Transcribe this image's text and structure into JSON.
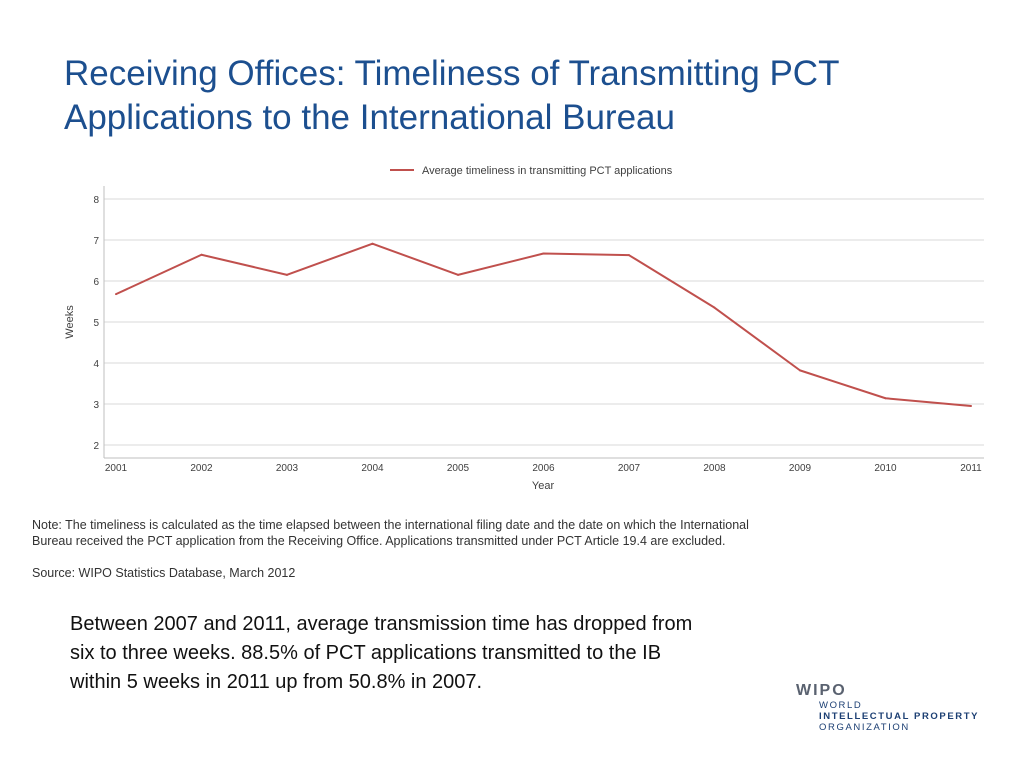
{
  "title": {
    "line1": "Receiving Offices:  Timeliness of Transmitting PCT",
    "line2": "Applications to the International Bureau"
  },
  "note": {
    "line1": "Note: The timeliness is calculated as the time elapsed between the international filing date and the date on which the International",
    "line2": "Bureau received the PCT application from the Receiving Office. Applications transmitted under PCT Article 19.4 are excluded."
  },
  "source": "Source: WIPO Statistics Database, March 2012",
  "summary": {
    "line1": "Between 2007 and 2011, average transmission time has dropped from",
    "line2": "six to three weeks. 88.5% of PCT applications transmitted to the IB",
    "line3": "within 5 weeks in 2011 up from 50.8% in 2007."
  },
  "logo": {
    "word": "WIPO",
    "line1": "WORLD",
    "line2": "INTELLECTUAL PROPERTY",
    "line3": "ORGANIZATION"
  },
  "colors": {
    "title": "#1c4f8f",
    "series_line": "#c0504d",
    "grid": "#d9d9d9",
    "axis_text": "#404040"
  },
  "chart_data": {
    "type": "line",
    "categories": [
      "2001",
      "2002",
      "2003",
      "2004",
      "2005",
      "2006",
      "2007",
      "2008",
      "2009",
      "2010",
      "2011"
    ],
    "series": [
      {
        "name": "Average timeliness in transmitting PCT applications",
        "values": [
          5.68,
          6.64,
          6.15,
          6.91,
          6.15,
          6.67,
          6.63,
          5.35,
          3.82,
          3.14,
          2.95
        ]
      }
    ],
    "xlabel": "Year",
    "ylabel": "Weeks",
    "ylim": [
      2,
      8
    ],
    "yticks": [
      "2",
      "3",
      "4",
      "5",
      "6",
      "7",
      "8"
    ],
    "grid": true,
    "legend_position": "top"
  }
}
